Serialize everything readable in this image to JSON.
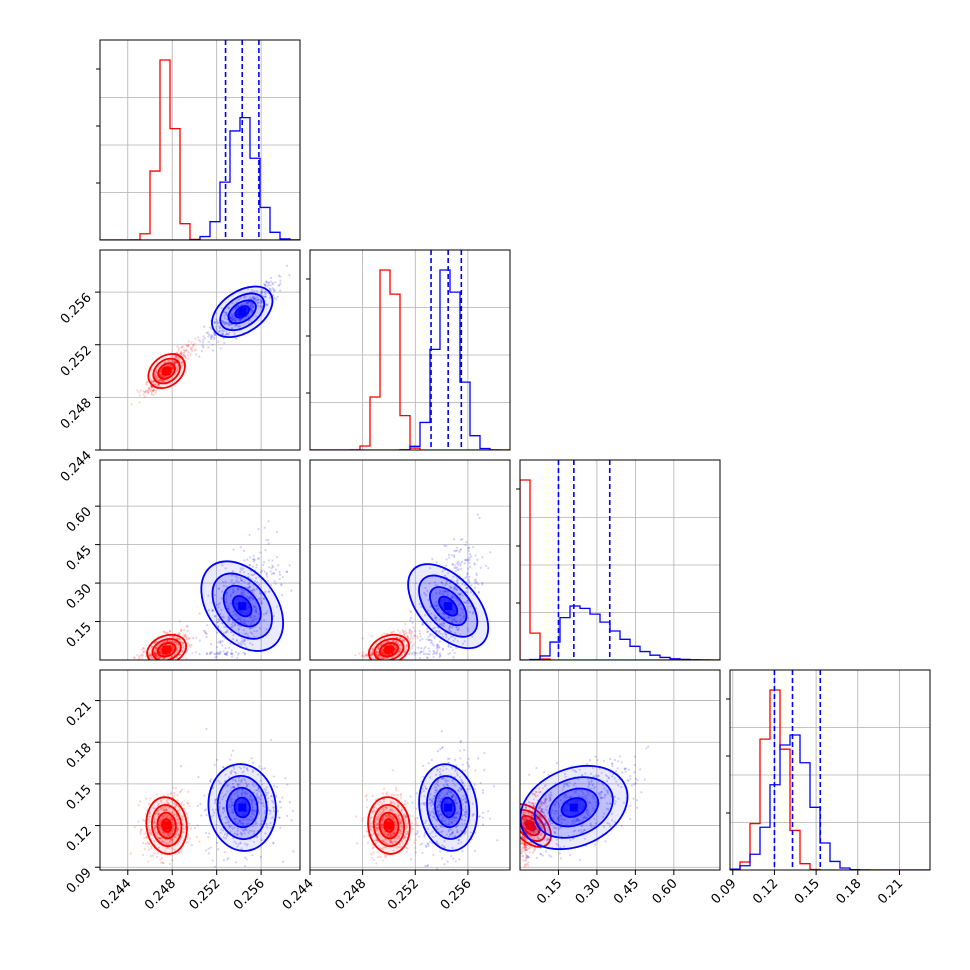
{
  "colors": {
    "red": "#ff0000",
    "blue": "#0000ff",
    "grid": "#b0b0b0",
    "frame": "#000000"
  },
  "chart_data": {
    "type": "corner",
    "grid": true,
    "params": [
      {
        "range": [
          0.2415,
          0.2595
        ],
        "ticks": [
          0.244,
          0.248,
          0.252,
          0.256
        ],
        "tick_labels": [
          "0.244",
          "0.248",
          "0.252",
          "0.256"
        ]
      },
      {
        "range": [
          0.244,
          0.2592
        ],
        "ticks": [
          0.244,
          0.248,
          0.252,
          0.256
        ],
        "tick_labels": [
          "0.244",
          "0.248",
          "0.252",
          "0.256"
        ]
      },
      {
        "range": [
          0.0,
          0.78
        ],
        "ticks": [
          0.15,
          0.3,
          0.45,
          0.6
        ],
        "tick_labels": [
          "0.15",
          "0.30",
          "0.45",
          "0.60"
        ]
      },
      {
        "range": [
          0.088,
          0.232
        ],
        "ticks": [
          0.09,
          0.12,
          0.15,
          0.18,
          0.21
        ],
        "tick_labels": [
          "0.09",
          "0.12",
          "0.15",
          "0.18",
          "0.21"
        ]
      }
    ],
    "series": [
      {
        "color": "red",
        "mean": [
          0.2475,
          0.25,
          0.04,
          0.12
        ],
        "std": [
          0.00075,
          0.00065,
          0.025,
          0.0085
        ],
        "hist_peak": [
          1.0,
          1.0,
          1.0,
          1.0
        ]
      },
      {
        "color": "blue",
        "mean": [
          0.2543,
          0.2545,
          0.21,
          0.133
        ],
        "std": [
          0.00125,
          0.0009,
          0.09,
          0.013
        ],
        "hist_peak": [
          0.68,
          1.0,
          0.3,
          0.75
        ],
        "quantiles": [
          [
            0.2528,
            0.2543,
            0.2558
          ],
          [
            0.2532,
            0.2545,
            0.2555
          ],
          [
            0.15,
            0.21,
            0.35
          ],
          [
            0.12,
            0.133,
            0.153
          ]
        ]
      }
    ]
  }
}
